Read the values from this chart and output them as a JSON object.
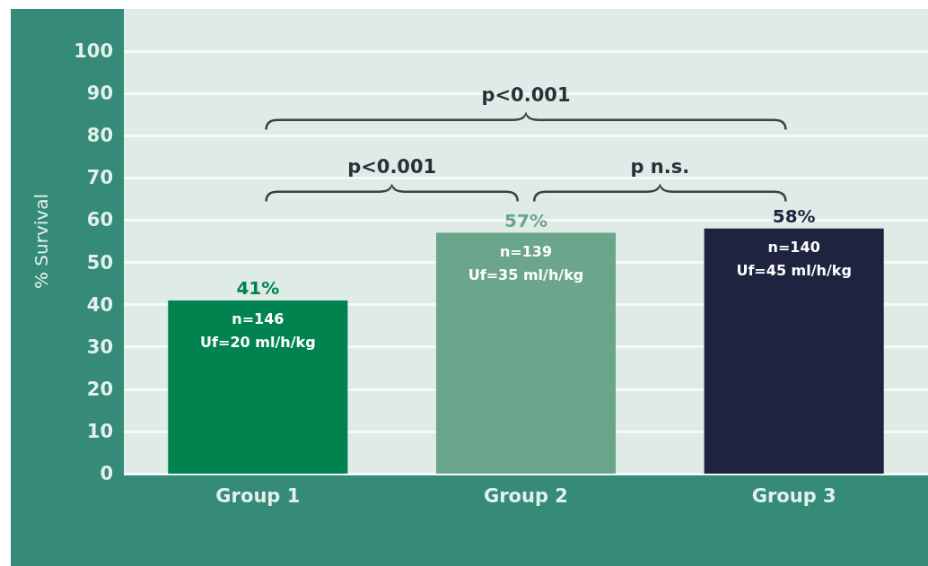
{
  "chart_data": {
    "type": "bar",
    "ylabel": "% Survival",
    "categories": [
      "Group 1",
      "Group 2",
      "Group 3"
    ],
    "values": [
      41,
      57,
      58
    ],
    "colors": [
      "#00834f",
      "#6aa58c",
      "#1e2340"
    ],
    "value_labels": [
      "41%",
      "57%",
      "58%"
    ],
    "ylim": [
      0,
      110
    ],
    "yticks": [
      0,
      10,
      20,
      30,
      40,
      50,
      60,
      70,
      80,
      90,
      100
    ],
    "grid": "y",
    "annotations": [
      {
        "text": "n=146\nUf=20 ml/h/kg",
        "x": "Group 1",
        "y": 41
      },
      {
        "text": "n=139\nUf=35 ml/h/kg",
        "x": "Group 2",
        "y": 57
      },
      {
        "text": "n=140\nUf=45 ml/h/kg",
        "x": "Group 3",
        "y": 58
      },
      "p<0.001",
      "p<0.001",
      "p n.s."
    ]
  }
}
